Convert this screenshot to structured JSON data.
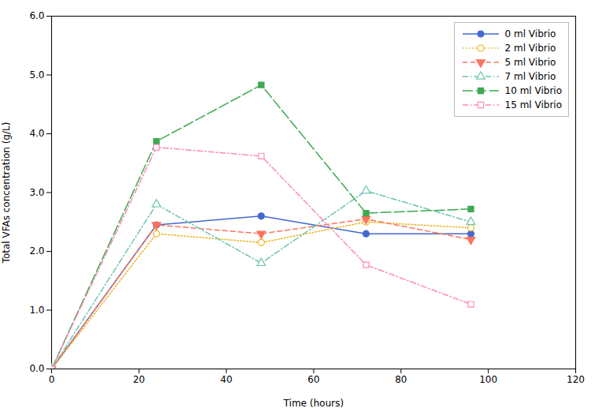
{
  "chart_data": {
    "type": "line",
    "xlabel": "Time (hours)",
    "ylabel": "Total VFAs concentration (g/L)",
    "x": [
      0,
      24,
      48,
      72,
      96
    ],
    "xlim": [
      0,
      120
    ],
    "ylim": [
      0,
      6
    ],
    "xticks": [
      0,
      20,
      40,
      60,
      80,
      100,
      120
    ],
    "yticks": [
      0,
      1,
      2,
      3,
      4,
      5,
      6
    ],
    "grid": false,
    "legend": "upper right",
    "series": [
      {
        "name": "0 ml Vibrio",
        "values": [
          0,
          2.45,
          2.6,
          2.3,
          2.3
        ],
        "marker": "circle",
        "line_style": "solid"
      },
      {
        "name": "2 ml Vibrio",
        "values": [
          0,
          2.3,
          2.15,
          2.5,
          2.4
        ],
        "marker": "open_circle",
        "line_style": "dotted"
      },
      {
        "name": "5 ml Vibrio",
        "values": [
          0,
          2.45,
          2.3,
          2.55,
          2.2
        ],
        "marker": "triangle_down",
        "line_style": "dashed"
      },
      {
        "name": "7 ml Vibrio",
        "values": [
          0,
          2.8,
          1.8,
          3.03,
          2.5
        ],
        "marker": "open_triangle_up",
        "line_style": "dashdot"
      },
      {
        "name": "10 ml Vibrio",
        "values": [
          0,
          3.87,
          4.83,
          2.65,
          2.72
        ],
        "marker": "square",
        "line_style": "longdash"
      },
      {
        "name": "15 ml Vibrio",
        "values": [
          0,
          3.77,
          3.62,
          1.77,
          1.1
        ],
        "marker": "open_square",
        "line_style": "dashdot"
      }
    ]
  }
}
